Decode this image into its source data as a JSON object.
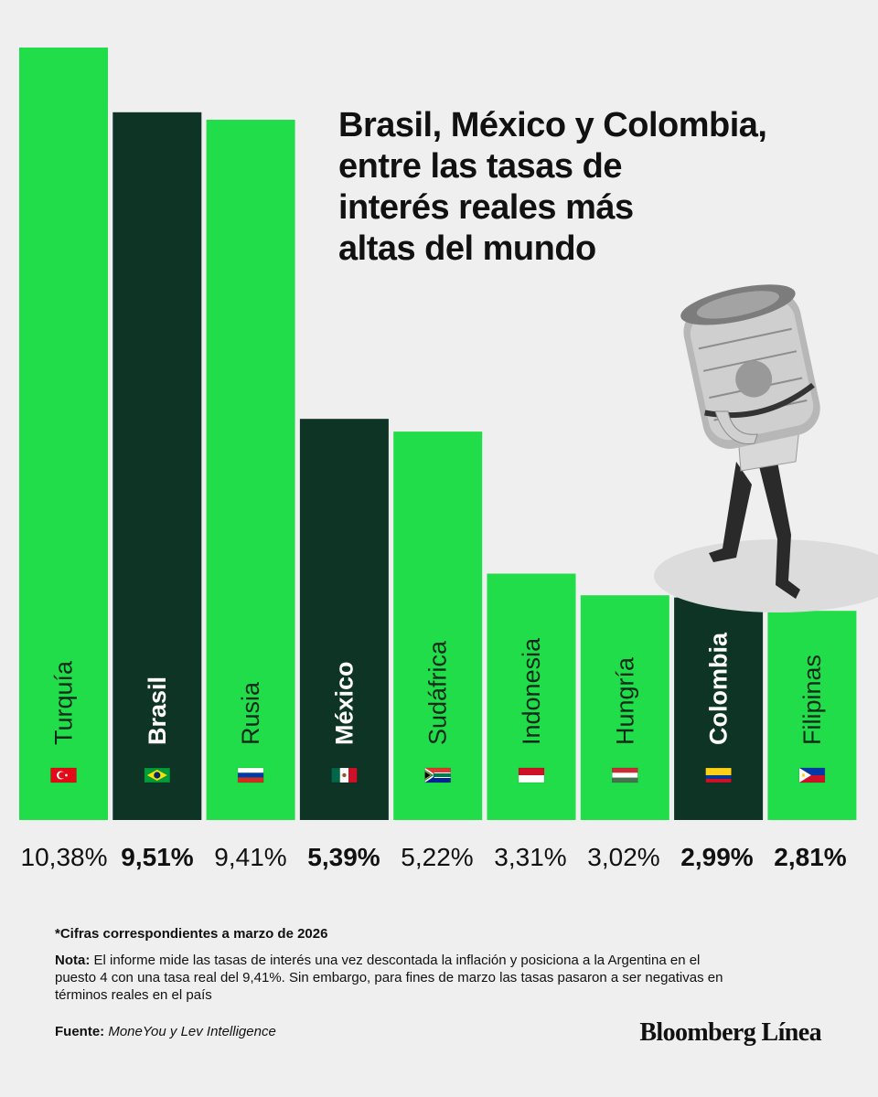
{
  "chart_data": {
    "type": "bar",
    "title": "Brasil, México y Colombia, entre las tasas de interés reales más altas del mundo",
    "categories": [
      "Turquía",
      "Brasil",
      "Rusia",
      "México",
      "Sudáfrica",
      "Indonesia",
      "Hungría",
      "Colombia",
      "Filipinas"
    ],
    "values": [
      10.38,
      9.51,
      9.41,
      5.39,
      5.22,
      3.31,
      3.02,
      2.99,
      2.81
    ],
    "value_labels": [
      "10,38%",
      "9,51%",
      "9,41%",
      "5,39%",
      "5,22%",
      "3,31%",
      "3,02%",
      "2,99%",
      "2,81%"
    ],
    "highlighted": [
      "Brasil",
      "México",
      "Colombia"
    ],
    "unit": "%",
    "xlabel": "",
    "ylabel": "",
    "ylim": [
      0,
      10.38
    ],
    "grid": false,
    "colors": {
      "default": "#22dd4a",
      "highlight": "#0d3424",
      "label_default": "#0f2a1a",
      "label_highlight": "#ffffff"
    }
  },
  "title_lines": [
    "Brasil, México y Colombia,",
    "entre las tasas de",
    "interés reales más",
    "altas del mundo"
  ],
  "notes": {
    "asterisk": "*Cifras correspondientes a marzo de 2026",
    "nota_label": "Nota:",
    "nota_text": " El informe mide las tasas de interés una vez descontada la inflación y posiciona a la Argentina en el puesto 4 con una tasa real del 9,41%. Sin embargo, para fines de marzo las tasas pasaron a ser negativas en términos reales en el país",
    "fuente_label": "Fuente:",
    "fuente_text": "MoneYou y Lev Intelligence"
  },
  "brand": "Bloomberg Línea",
  "flags": [
    "turkey-flag-icon",
    "brazil-flag-icon",
    "russia-flag-icon",
    "mexico-flag-icon",
    "south-africa-flag-icon",
    "indonesia-flag-icon",
    "hungary-flag-icon",
    "colombia-flag-icon",
    "philippines-flag-icon"
  ]
}
